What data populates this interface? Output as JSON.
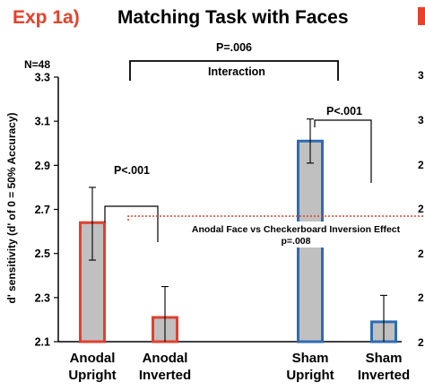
{
  "chart_data": {
    "type": "bar",
    "title_prefix": "Exp 1a)",
    "title": "Matching Task with Faces",
    "sample_size": "N=48",
    "ylabel": "d' sensitivity (d' of 0 = 50% Accuracy)",
    "ylim": [
      2.1,
      3.3
    ],
    "yticks": [
      "3.3",
      "3.1",
      "2.9",
      "2.7",
      "2.5",
      "2.3",
      "2.1"
    ],
    "categories": [
      [
        "Anodal",
        "Upright"
      ],
      [
        "Anodal",
        "Inverted"
      ],
      [
        "Sham",
        "Upright"
      ],
      [
        "Sham",
        "Inverted"
      ]
    ],
    "values": [
      2.64,
      2.21,
      3.01,
      2.19
    ],
    "errors": [
      [
        2.47,
        2.8
      ],
      [
        2.1,
        2.35
      ],
      [
        2.91,
        3.11
      ],
      [
        2.1,
        2.31
      ]
    ],
    "bar_fill": "#c0c0c0",
    "bar_outline_colors": [
      "#e0402f",
      "#e0402f",
      "#2f6bb3",
      "#2f6bb3"
    ],
    "annotations": {
      "interaction_p": "P=.006",
      "interaction_label": "Interaction",
      "anodal_p": "P<.001",
      "sham_p": "P<.001",
      "effect_label": "Anodal Face vs Checkerboard Inversion Effect",
      "effect_p": "p=.008",
      "effect_line_color": "#e0402f"
    },
    "grid": false
  }
}
